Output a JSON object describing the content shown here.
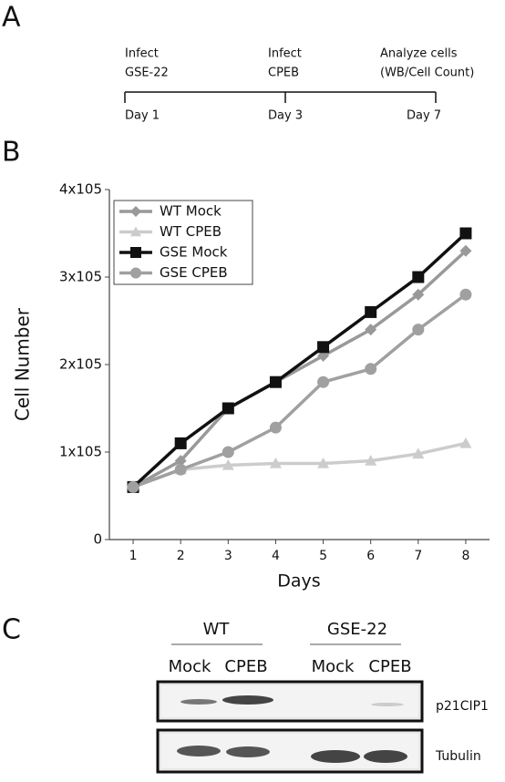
{
  "panels": {
    "a": "A",
    "b": "B",
    "c": "C"
  },
  "timeline": {
    "events": [
      {
        "lines": [
          "Infect",
          "GSE-22"
        ],
        "day": "Day 1"
      },
      {
        "lines": [
          "Infect",
          "CPEB"
        ],
        "day": "Day 3"
      },
      {
        "lines": [
          "Analyze cells",
          "(WB/Cell Count)"
        ],
        "day": "Day 7"
      }
    ]
  },
  "chart_data": {
    "type": "line",
    "xlabel": "Days",
    "ylabel": "Cell Number",
    "x": [
      1,
      2,
      3,
      4,
      5,
      6,
      7,
      8
    ],
    "xlim": [
      0.5,
      8.5
    ],
    "xticks": [
      1,
      2,
      3,
      4,
      5,
      6,
      7,
      8
    ],
    "ylim": [
      0,
      400000
    ],
    "yticks": [
      0,
      {
        "value": 100000,
        "label": "1x105"
      },
      {
        "value": 200000,
        "label": "2x105"
      },
      {
        "value": 300000,
        "label": "3x105"
      },
      {
        "value": 400000,
        "label": "4x105"
      }
    ],
    "legend": "upper left",
    "series": [
      {
        "name": "WT Mock",
        "color": "#999999",
        "marker": "diamond",
        "values": [
          60000,
          90000,
          150000,
          180000,
          210000,
          240000,
          280000,
          330000
        ]
      },
      {
        "name": "WT CPEB",
        "color": "#cccccc",
        "marker": "triangle",
        "values": [
          60000,
          80000,
          85000,
          87000,
          87000,
          90000,
          98000,
          110000
        ]
      },
      {
        "name": "GSE Mock",
        "color": "#111111",
        "marker": "square",
        "values": [
          60000,
          110000,
          150000,
          180000,
          220000,
          260000,
          300000,
          350000
        ]
      },
      {
        "name": "GSE CPEB",
        "color": "#a0a0a0",
        "marker": "circle",
        "values": [
          60000,
          80000,
          100000,
          128000,
          180000,
          195000,
          240000,
          280000
        ]
      }
    ]
  },
  "blot": {
    "groups": [
      {
        "name": "WT",
        "lanes": [
          "Mock",
          "CPEB"
        ]
      },
      {
        "name": "GSE-22",
        "lanes": [
          "Mock",
          "CPEB"
        ]
      }
    ],
    "rows": [
      "p21CIP1",
      "Tubulin"
    ]
  }
}
